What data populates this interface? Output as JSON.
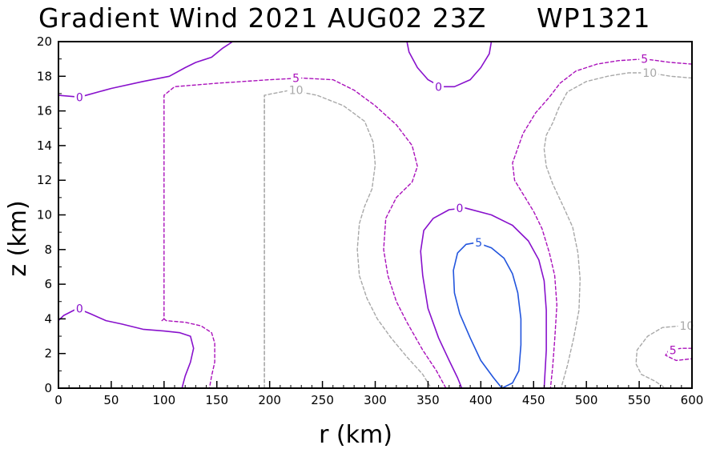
{
  "chart_data": {
    "type": "contour",
    "title": "Gradient Wind 2021 AUG02 23Z",
    "storm_id": "WP1321",
    "xlabel": "r (km)",
    "ylabel": "z (km)",
    "xlim": [
      0,
      600
    ],
    "ylim": [
      0,
      20
    ],
    "xticks": [
      0,
      50,
      100,
      150,
      200,
      250,
      300,
      350,
      400,
      450,
      500,
      550,
      600
    ],
    "yticks": [
      0,
      2,
      4,
      6,
      8,
      10,
      12,
      14,
      16,
      18,
      20
    ],
    "grid": false,
    "levels": [
      {
        "value": 5,
        "label": "5",
        "color": "#2255dd",
        "style": "solid"
      },
      {
        "value": 0,
        "label": "0",
        "color": "#8811cc",
        "style": "solid"
      },
      {
        "value": -5,
        "label": "5",
        "color": "#aa11bb",
        "style": "dashed"
      },
      {
        "value": -10,
        "label": "10",
        "color": "#a8a8a8",
        "style": "dashed"
      }
    ],
    "contours": [
      {
        "level": 0,
        "points": [
          [
            0,
            16.9
          ],
          [
            20,
            16.8
          ],
          [
            50,
            17.3
          ],
          [
            80,
            17.7
          ],
          [
            105,
            18.0
          ],
          [
            120,
            18.5
          ],
          [
            130,
            18.8
          ],
          [
            145,
            19.1
          ],
          [
            155,
            19.6
          ],
          [
            165,
            20
          ]
        ],
        "label_at": [
          20,
          16.8
        ]
      },
      {
        "level": -5,
        "points": [
          [
            98,
            3.9
          ],
          [
            100,
            4.0
          ],
          [
            100,
            16.9
          ],
          [
            110,
            17.4
          ],
          [
            150,
            17.6
          ],
          [
            200,
            17.8
          ],
          [
            230,
            17.9
          ],
          [
            260,
            17.8
          ],
          [
            280,
            17.2
          ],
          [
            300,
            16.3
          ],
          [
            320,
            15.2
          ],
          [
            335,
            14.0
          ],
          [
            340,
            12.8
          ],
          [
            335,
            11.9
          ],
          [
            320,
            11.0
          ],
          [
            310,
            9.8
          ],
          [
            308,
            8.0
          ],
          [
            312,
            6.5
          ],
          [
            320,
            5.0
          ],
          [
            330,
            3.8
          ],
          [
            345,
            2.2
          ],
          [
            358,
            1.0
          ],
          [
            367,
            0
          ]
        ],
        "label_at": [
          225,
          17.9
        ]
      },
      {
        "level": -10,
        "points": [
          [
            195,
            0
          ],
          [
            195,
            16.9
          ],
          [
            203,
            17.0
          ],
          [
            220,
            17.2
          ],
          [
            245,
            16.9
          ],
          [
            270,
            16.3
          ],
          [
            290,
            15.4
          ],
          [
            298,
            14.2
          ],
          [
            300,
            12.9
          ],
          [
            297,
            11.5
          ],
          [
            290,
            10.5
          ],
          [
            285,
            9.5
          ],
          [
            283,
            8.0
          ],
          [
            285,
            6.5
          ],
          [
            292,
            5.2
          ],
          [
            302,
            4.0
          ],
          [
            315,
            2.9
          ],
          [
            330,
            1.8
          ],
          [
            345,
            0.8
          ],
          [
            353,
            0
          ]
        ],
        "label_at": [
          225,
          17.2
        ]
      },
      {
        "level": 0,
        "points": [
          [
            0,
            3.9
          ],
          [
            5,
            4.2
          ],
          [
            18,
            4.6
          ],
          [
            30,
            4.3
          ],
          [
            45,
            3.9
          ],
          [
            60,
            3.7
          ],
          [
            80,
            3.4
          ],
          [
            100,
            3.3
          ],
          [
            115,
            3.2
          ],
          [
            125,
            3.0
          ],
          [
            128,
            2.3
          ],
          [
            125,
            1.5
          ],
          [
            120,
            0.7
          ],
          [
            117,
            0
          ]
        ],
        "label_at": [
          20,
          4.6
        ]
      },
      {
        "level": -5,
        "points": [
          [
            100,
            4.0
          ],
          [
            102,
            3.9
          ],
          [
            120,
            3.8
          ],
          [
            135,
            3.6
          ],
          [
            145,
            3.2
          ],
          [
            148,
            2.6
          ],
          [
            148,
            1.5
          ],
          [
            145,
            0.7
          ],
          [
            143,
            0
          ]
        ],
        "label_at": null
      },
      {
        "level": -10,
        "points": [
          [
            195,
            0
          ],
          [
            195,
            16.9
          ]
        ],
        "label_at": null
      },
      {
        "level": 0,
        "points": [
          [
            330,
            20
          ],
          [
            332,
            19.4
          ],
          [
            340,
            18.5
          ],
          [
            350,
            17.8
          ],
          [
            362,
            17.4
          ],
          [
            375,
            17.4
          ],
          [
            390,
            17.8
          ],
          [
            400,
            18.5
          ],
          [
            408,
            19.3
          ],
          [
            410,
            20
          ]
        ],
        "label_at": [
          360,
          17.4
        ]
      },
      {
        "level": 0,
        "points": [
          [
            382,
            0
          ],
          [
            378,
            0.6
          ],
          [
            370,
            1.6
          ],
          [
            360,
            2.9
          ],
          [
            350,
            4.6
          ],
          [
            345,
            6.5
          ],
          [
            343,
            7.9
          ],
          [
            346,
            9.1
          ],
          [
            355,
            9.8
          ],
          [
            370,
            10.3
          ],
          [
            385,
            10.4
          ],
          [
            410,
            10.0
          ],
          [
            430,
            9.4
          ],
          [
            445,
            8.5
          ],
          [
            455,
            7.4
          ],
          [
            460,
            6.2
          ],
          [
            462,
            4.5
          ],
          [
            462,
            2.2
          ],
          [
            460,
            0
          ]
        ],
        "label_at": [
          380,
          10.4
        ]
      },
      {
        "level": 5,
        "points": [
          [
            420,
            0
          ],
          [
            412,
            0.6
          ],
          [
            400,
            1.6
          ],
          [
            390,
            2.9
          ],
          [
            380,
            4.3
          ],
          [
            375,
            5.5
          ],
          [
            374,
            6.8
          ],
          [
            378,
            7.8
          ],
          [
            386,
            8.3
          ],
          [
            396,
            8.4
          ],
          [
            410,
            8.1
          ],
          [
            422,
            7.5
          ],
          [
            430,
            6.6
          ],
          [
            435,
            5.5
          ],
          [
            438,
            4.0
          ],
          [
            438,
            2.5
          ],
          [
            436,
            1.0
          ],
          [
            430,
            0.3
          ],
          [
            420,
            0
          ]
        ],
        "label_at": [
          398,
          8.4
        ]
      },
      {
        "level": -5,
        "points": [
          [
            600,
            18.7
          ],
          [
            580,
            18.8
          ],
          [
            555,
            19.0
          ],
          [
            530,
            18.9
          ],
          [
            510,
            18.7
          ],
          [
            490,
            18.3
          ],
          [
            475,
            17.6
          ],
          [
            465,
            16.8
          ],
          [
            452,
            15.9
          ],
          [
            440,
            14.7
          ],
          [
            430,
            13.0
          ],
          [
            432,
            12.0
          ],
          [
            442,
            11.0
          ],
          [
            450,
            10.2
          ],
          [
            458,
            9.2
          ],
          [
            465,
            7.8
          ],
          [
            470,
            6.5
          ],
          [
            472,
            4.8
          ],
          [
            470,
            2.8
          ],
          [
            468,
            1.2
          ],
          [
            466,
            0
          ]
        ],
        "label_at": [
          555,
          19.0
        ]
      },
      {
        "level": -10,
        "points": [
          [
            600,
            17.9
          ],
          [
            580,
            18.0
          ],
          [
            560,
            18.2
          ],
          [
            540,
            18.2
          ],
          [
            520,
            18.0
          ],
          [
            500,
            17.7
          ],
          [
            482,
            17.1
          ],
          [
            474,
            16.2
          ],
          [
            468,
            15.3
          ],
          [
            462,
            14.6
          ],
          [
            460,
            13.8
          ],
          [
            462,
            12.8
          ],
          [
            468,
            11.8
          ],
          [
            478,
            10.5
          ],
          [
            487,
            9.3
          ],
          [
            492,
            7.8
          ],
          [
            494,
            6.3
          ],
          [
            493,
            4.5
          ],
          [
            488,
            2.9
          ],
          [
            482,
            1.3
          ],
          [
            476,
            0
          ]
        ],
        "label_at": [
          560,
          18.2
        ]
      },
      {
        "level": -10,
        "points": [
          [
            600,
            3.6
          ],
          [
            590,
            3.6
          ],
          [
            572,
            3.5
          ],
          [
            558,
            3.0
          ],
          [
            548,
            2.2
          ],
          [
            547,
            1.4
          ],
          [
            552,
            0.8
          ],
          [
            565,
            0.4
          ],
          [
            575,
            0
          ]
        ],
        "label_at": [
          595,
          3.6
        ]
      },
      {
        "level": -5,
        "points": [
          [
            600,
            2.3
          ],
          [
            590,
            2.3
          ],
          [
            578,
            2.2
          ],
          [
            575,
            1.9
          ],
          [
            585,
            1.6
          ],
          [
            600,
            1.7
          ]
        ],
        "label_at": [
          582,
          2.2
        ]
      }
    ]
  }
}
